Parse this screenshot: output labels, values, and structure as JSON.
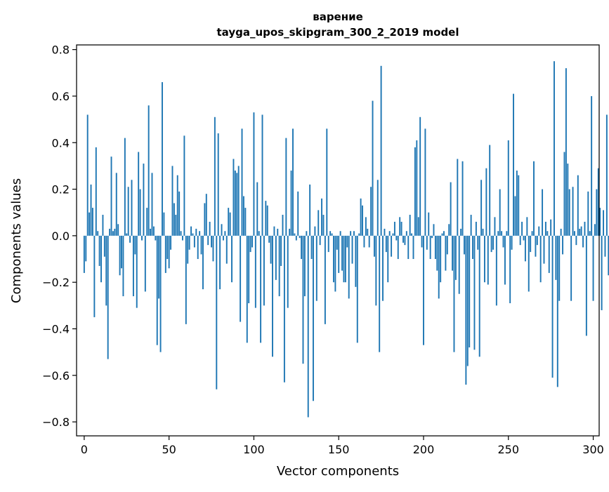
{
  "chart_data": {
    "type": "bar",
    "title": "варение",
    "subtitle": "tayga_upos_skipgram_300_2_2019 model",
    "xlabel": "Vector components",
    "ylabel": "Components values",
    "xlim": [
      -4.5,
      303.5
    ],
    "ylim": [
      -0.86,
      0.82
    ],
    "xticks": [
      0,
      50,
      100,
      150,
      200,
      250,
      300
    ],
    "xtick_labels": [
      "0",
      "50",
      "100",
      "150",
      "200",
      "250",
      "300"
    ],
    "yticks": [
      -0.8,
      -0.6,
      -0.4,
      -0.2,
      0.0,
      0.2,
      0.4,
      0.6,
      0.8
    ],
    "ytick_labels": [
      "−0.8",
      "−0.6",
      "−0.4",
      "−0.2",
      "0.0",
      "0.2",
      "0.4",
      "0.6",
      "0.8"
    ],
    "bar_color": "#1f77b4",
    "grid": false,
    "values": [
      -0.16,
      -0.11,
      0.52,
      0.1,
      0.22,
      0.12,
      -0.35,
      0.38,
      0.02,
      -0.13,
      -0.2,
      0.09,
      -0.09,
      -0.3,
      -0.53,
      0.03,
      0.34,
      0.02,
      0.03,
      0.27,
      0.05,
      -0.17,
      -0.14,
      -0.26,
      0.42,
      0.01,
      0.21,
      -0.03,
      0.24,
      -0.26,
      -0.08,
      -0.31,
      0.36,
      0.2,
      -0.02,
      0.31,
      -0.24,
      0.12,
      0.56,
      0.03,
      0.27,
      0.04,
      -0.02,
      -0.47,
      -0.27,
      -0.5,
      0.66,
      0.1,
      -0.16,
      -0.1,
      -0.14,
      -0.06,
      0.3,
      0.14,
      0.09,
      0.26,
      0.19,
      0.02,
      -0.02,
      0.43,
      -0.38,
      -0.12,
      -0.06,
      0.04,
      0.01,
      -0.05,
      0.03,
      -0.1,
      0.02,
      -0.08,
      -0.23,
      0.14,
      0.18,
      -0.04,
      0.06,
      -0.05,
      -0.11,
      0.51,
      -0.66,
      0.44,
      -0.23,
      0.05,
      -0.02,
      0.02,
      -0.12,
      0.12,
      0.1,
      -0.2,
      0.33,
      0.28,
      0.27,
      0.3,
      -0.37,
      0.46,
      0.17,
      0.12,
      -0.46,
      -0.29,
      -0.07,
      -0.05,
      0.53,
      -0.31,
      0.23,
      0.02,
      -0.46,
      0.52,
      -0.3,
      0.15,
      0.13,
      -0.03,
      -0.12,
      -0.52,
      0.04,
      -0.19,
      0.03,
      -0.26,
      -0.13,
      0.09,
      -0.63,
      0.42,
      -0.31,
      0.03,
      0.28,
      0.46,
      0.01,
      -0.02,
      0.19,
      -0.01,
      -0.1,
      -0.55,
      -0.26,
      0.02,
      -0.78,
      0.22,
      -0.1,
      -0.71,
      0.04,
      -0.28,
      0.11,
      -0.04,
      0.16,
      0.09,
      -0.38,
      0.46,
      -0.07,
      0.02,
      0.01,
      -0.2,
      -0.24,
      -0.06,
      -0.16,
      0.02,
      -0.15,
      -0.2,
      -0.2,
      -0.05,
      -0.27,
      0.02,
      -0.12,
      0.02,
      -0.22,
      -0.46,
      0.01,
      0.16,
      0.13,
      -0.05,
      0.08,
      0.03,
      -0.05,
      0.21,
      0.58,
      -0.09,
      -0.3,
      0.24,
      -0.5,
      0.73,
      -0.28,
      0.03,
      -0.07,
      -0.2,
      0.02,
      -0.09,
      0.01,
      0.06,
      -0.02,
      -0.1,
      0.08,
      0.06,
      -0.03,
      -0.04,
      0.02,
      -0.1,
      0.09,
      0.01,
      -0.1,
      0.38,
      0.41,
      0.08,
      0.51,
      -0.05,
      -0.47,
      0.46,
      -0.06,
      0.1,
      -0.1,
      -0.01,
      0.05,
      -0.1,
      -0.15,
      -0.27,
      -0.2,
      0.01,
      0.02,
      -0.15,
      -0.08,
      0.05,
      0.23,
      -0.15,
      -0.5,
      -0.19,
      0.33,
      -0.25,
      0.03,
      0.32,
      -0.08,
      -0.64,
      -0.56,
      -0.48,
      0.09,
      -0.1,
      -0.49,
      0.06,
      -0.06,
      -0.52,
      0.24,
      0.03,
      -0.2,
      0.29,
      -0.21,
      0.39,
      -0.07,
      -0.06,
      0.08,
      -0.3,
      0.02,
      0.2,
      0.02,
      -0.05,
      -0.21,
      0.02,
      0.41,
      -0.29,
      -0.06,
      0.61,
      0.17,
      0.28,
      0.26,
      -0.04,
      0.06,
      -0.02,
      -0.11,
      0.08,
      -0.24,
      -0.07,
      0.02,
      0.32,
      -0.09,
      -0.04,
      0.04,
      -0.2,
      0.2,
      -0.12,
      0.06,
      0.02,
      -0.16,
      0.07,
      -0.61,
      0.75,
      -0.19,
      -0.65,
      -0.28,
      0.03,
      -0.08,
      0.36,
      0.72,
      0.31,
      0.2,
      -0.28,
      0.21,
      0.02,
      -0.04,
      0.26,
      0.03,
      0.04,
      -0.05,
      0.06,
      -0.43,
      0.19,
      0.02,
      0.6,
      -0.28,
      0.05,
      0.2,
      0.29,
      0.12,
      -0.32,
      0.11,
      -0.09,
      0.52,
      -0.17,
      -0.02
    ]
  }
}
